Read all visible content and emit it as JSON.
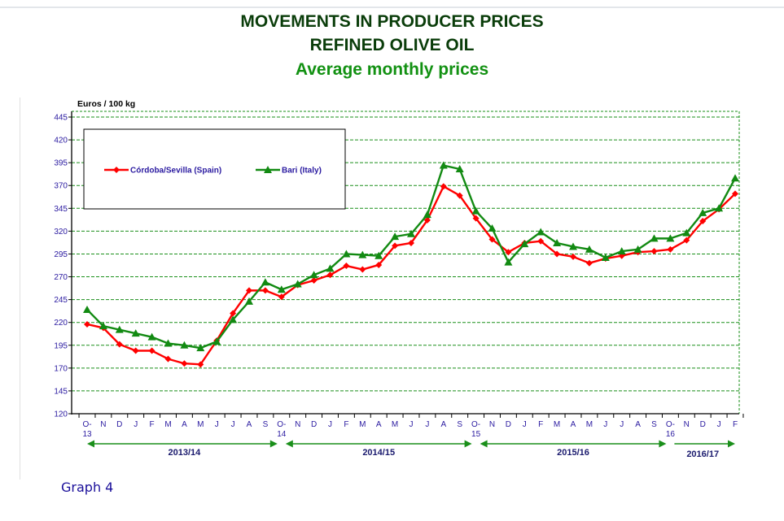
{
  "titles": {
    "line1": "MOVEMENTS IN PRODUCER PRICES",
    "line2": "REFINED OLIVE OIL",
    "line3": "Average monthly prices"
  },
  "caption": "Graph 4",
  "colors": {
    "spain": "#ff0000",
    "italy": "#128a12",
    "grid": "#1a8f1a",
    "tick_text": "#2a1aa0",
    "title_dark": "#0a3d0a",
    "title_green": "#129112"
  },
  "chart_data": {
    "type": "line",
    "title": "MOVEMENTS IN PRODUCER PRICES - REFINED OLIVE OIL - Average monthly prices",
    "ylabel": "Euros / 100 kg",
    "xlabel": "",
    "ylim": [
      120,
      445
    ],
    "yticks": [
      120,
      145,
      170,
      195,
      220,
      245,
      270,
      295,
      320,
      345,
      370,
      395,
      420,
      445
    ],
    "grid": true,
    "legend_position": "top-left",
    "x": [
      "O-13",
      "N",
      "D",
      "J",
      "F",
      "M",
      "A",
      "M",
      "J",
      "J",
      "A",
      "S",
      "O-14",
      "N",
      "D",
      "J",
      "F",
      "M",
      "A",
      "M",
      "J",
      "J",
      "A",
      "S",
      "O-15",
      "N",
      "D",
      "J",
      "F",
      "M",
      "A",
      "M",
      "J",
      "J",
      "A",
      "S",
      "O-16",
      "N",
      "D",
      "J",
      "F"
    ],
    "x_tick_labels": [
      {
        "top": "O-",
        "bottom": "13"
      },
      {
        "top": "N"
      },
      {
        "top": "D"
      },
      {
        "top": "J"
      },
      {
        "top": "F"
      },
      {
        "top": "M"
      },
      {
        "top": "A"
      },
      {
        "top": "M"
      },
      {
        "top": "J"
      },
      {
        "top": "J"
      },
      {
        "top": "A"
      },
      {
        "top": "S"
      },
      {
        "top": "O-",
        "bottom": "14"
      },
      {
        "top": "N"
      },
      {
        "top": "D"
      },
      {
        "top": "J"
      },
      {
        "top": "F"
      },
      {
        "top": "M"
      },
      {
        "top": "A"
      },
      {
        "top": "M"
      },
      {
        "top": "J"
      },
      {
        "top": "J"
      },
      {
        "top": "A"
      },
      {
        "top": "S"
      },
      {
        "top": "O-",
        "bottom": "15"
      },
      {
        "top": "N"
      },
      {
        "top": "D"
      },
      {
        "top": "J"
      },
      {
        "top": "F"
      },
      {
        "top": "M"
      },
      {
        "top": "A"
      },
      {
        "top": "M"
      },
      {
        "top": "J"
      },
      {
        "top": "J"
      },
      {
        "top": "A"
      },
      {
        "top": "S"
      },
      {
        "top": "O-",
        "bottom": "16"
      },
      {
        "top": "N"
      },
      {
        "top": "D"
      },
      {
        "top": "J"
      },
      {
        "top": "F"
      }
    ],
    "seasons": [
      {
        "label": "2013/14",
        "start": 0,
        "end": 12
      },
      {
        "label": "2014/15",
        "start": 12,
        "end": 24
      },
      {
        "label": "2015/16",
        "start": 24,
        "end": 36
      },
      {
        "label": "2016/17",
        "start": 36,
        "end": 40
      }
    ],
    "series": [
      {
        "name": "Córdoba/Sevilla (Spain)",
        "marker": "diamond",
        "values": [
          218,
          214,
          196,
          189,
          189,
          180,
          175,
          174,
          200,
          230,
          255,
          255,
          248,
          261,
          266,
          272,
          282,
          278,
          283,
          304,
          307,
          332,
          369,
          359,
          334,
          311,
          297,
          307,
          309,
          295,
          292,
          285,
          290,
          293,
          297,
          298,
          300,
          310,
          331,
          344,
          361
        ]
      },
      {
        "name": "Bari (Italy)",
        "marker": "triangle",
        "values": [
          234,
          216,
          212,
          208,
          204,
          197,
          195,
          192,
          199,
          223,
          243,
          264,
          256,
          262,
          272,
          279,
          295,
          294,
          293,
          314,
          317,
          338,
          392,
          388,
          342,
          323,
          286,
          306,
          319,
          307,
          303,
          300,
          291,
          298,
          300,
          312,
          312,
          318,
          340,
          345,
          378
        ]
      }
    ]
  }
}
